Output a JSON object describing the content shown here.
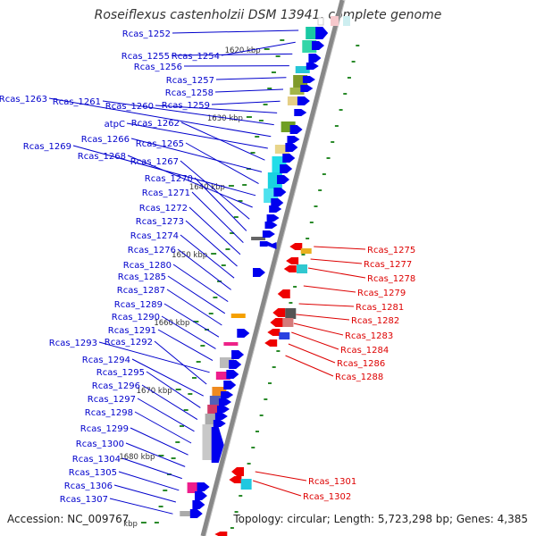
{
  "title": "Roseiflexus castenholzii DSM 13941, complete genome",
  "accession": "Accession: NC_009767",
  "topology": "Topology: circular; Length: 5,723,298 bp; Genes: 4,385",
  "colors": {
    "forward_strand": "#0000ee",
    "reverse_strand": "#ee0000",
    "forward_label": "#0000cc",
    "reverse_label": "#dd0000",
    "backbone": "#888888",
    "tick": "#2a8a2a"
  },
  "kbp_ticks": [
    "1620 kbp",
    "1630 kbp",
    "1640 kbp",
    "1650 kbp",
    "1660 kbp",
    "1670 kbp",
    "1680 kbp",
    "kbp"
  ],
  "forward_genes": [
    "Rcas_1252",
    "Rcas_1254",
    "Rcas_1255",
    "Rcas_1256",
    "Rcas_1257",
    "Rcas_1258",
    "Rcas_1259",
    "Rcas_1260",
    "Rcas_1261",
    "Rcas_1263",
    "atpC",
    "Rcas_1262",
    "Rcas_1266",
    "Rcas_1265",
    "Rcas_1269",
    "Rcas_1268",
    "Rcas_1267",
    "Rcas_1270",
    "Rcas_1271",
    "Rcas_1272",
    "Rcas_1273",
    "Rcas_1274",
    "Rcas_1276",
    "Rcas_1280",
    "Rcas_1285",
    "Rcas_1287",
    "Rcas_1289",
    "Rcas_1290",
    "Rcas_1291",
    "Rcas_1293",
    "Rcas_1292",
    "Rcas_1294",
    "Rcas_1295",
    "Rcas_1296",
    "Rcas_1297",
    "Rcas_1298",
    "Rcas_1299",
    "Rcas_1300",
    "Rcas_1304",
    "Rcas_1305",
    "Rcas_1306",
    "Rcas_1307"
  ],
  "reverse_genes": [
    "Rcas_1275",
    "Rcas_1277",
    "Rcas_1278",
    "Rcas_1279",
    "Rcas_1281",
    "Rcas_1282",
    "Rcas_1283",
    "Rcas_1284",
    "Rcas_1286",
    "Rcas_1288",
    "Rcas_1301",
    "Rcas_1302"
  ]
}
